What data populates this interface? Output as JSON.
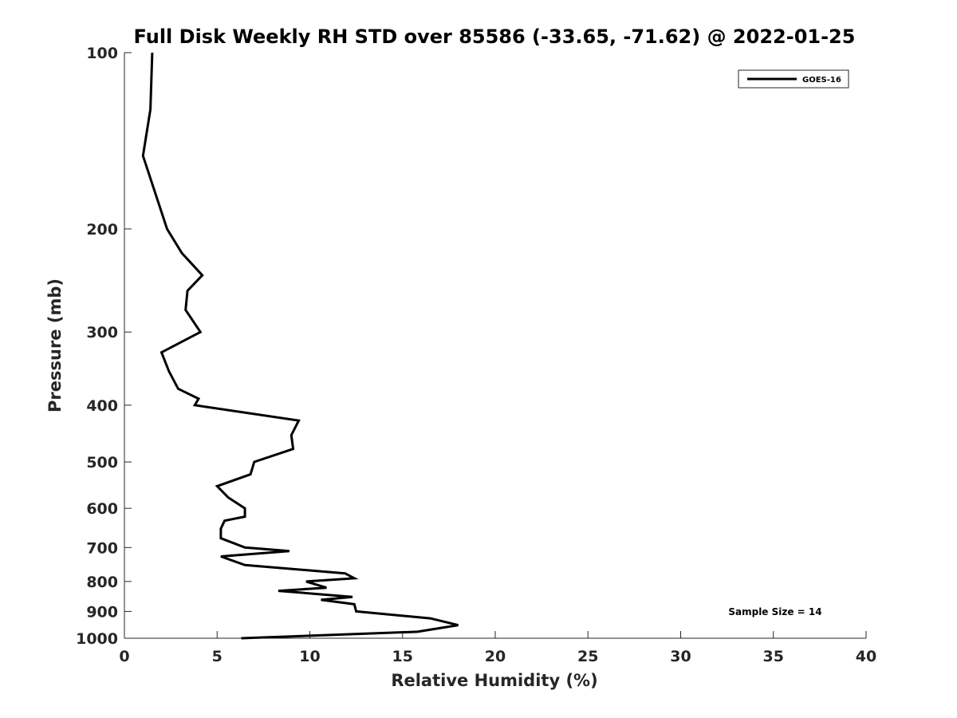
{
  "chart_data": {
    "type": "line",
    "title": "Full Disk Weekly RH STD over 85586 (-33.65, -71.62) @ 2022-01-25",
    "xlabel": "Relative Humidity (%)",
    "ylabel": "Pressure (mb)",
    "xlim": [
      0,
      40
    ],
    "ylim": [
      1000,
      100
    ],
    "y_scale": "log",
    "y_reversed": true,
    "grid": false,
    "legend_position": "top-right",
    "x_ticks": [
      0,
      5,
      10,
      15,
      20,
      25,
      30,
      35,
      40
    ],
    "y_ticks": [
      100,
      200,
      300,
      400,
      500,
      600,
      700,
      800,
      900,
      1000
    ],
    "annotation": "Sample Size = 14",
    "series": [
      {
        "name": "GOES-16",
        "color": "#000000",
        "points": [
          [
            1.5,
            100
          ],
          [
            1.4,
            125
          ],
          [
            1.0,
            150
          ],
          [
            2.3,
            200
          ],
          [
            3.1,
            220
          ],
          [
            4.2,
            240
          ],
          [
            3.4,
            255
          ],
          [
            3.3,
            275
          ],
          [
            4.1,
            300
          ],
          [
            2.0,
            325
          ],
          [
            2.4,
            350
          ],
          [
            2.9,
            375
          ],
          [
            4.0,
            390
          ],
          [
            3.8,
            400
          ],
          [
            9.4,
            425
          ],
          [
            9.0,
            450
          ],
          [
            9.1,
            475
          ],
          [
            7.0,
            500
          ],
          [
            6.8,
            525
          ],
          [
            5.0,
            550
          ],
          [
            5.6,
            575
          ],
          [
            6.5,
            600
          ],
          [
            6.5,
            620
          ],
          [
            5.4,
            630
          ],
          [
            5.2,
            650
          ],
          [
            5.2,
            675
          ],
          [
            6.5,
            700
          ],
          [
            8.9,
            710
          ],
          [
            5.2,
            725
          ],
          [
            6.5,
            750
          ],
          [
            11.9,
            775
          ],
          [
            12.4,
            790
          ],
          [
            9.8,
            800
          ],
          [
            10.9,
            820
          ],
          [
            8.3,
            830
          ],
          [
            12.3,
            850
          ],
          [
            10.6,
            860
          ],
          [
            12.4,
            875
          ],
          [
            12.5,
            900
          ],
          [
            16.5,
            925
          ],
          [
            18.0,
            950
          ],
          [
            15.8,
            975
          ],
          [
            6.3,
            1000
          ]
        ]
      }
    ]
  }
}
